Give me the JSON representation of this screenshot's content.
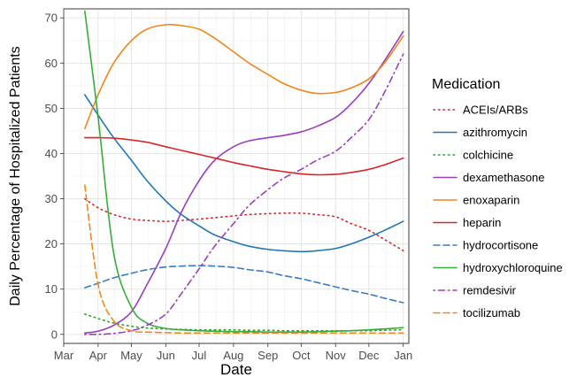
{
  "chart_data": {
    "type": "line",
    "title": "",
    "xlabel": "Date",
    "ylabel": "Daily Percentage of Hospitalized Patients",
    "xlim": [
      "2020-03-01",
      "2021-01-06"
    ],
    "ylim": [
      -2,
      72
    ],
    "x_ticks": [
      {
        "date": "2020-03-01",
        "label": "Mar"
      },
      {
        "date": "2020-04-01",
        "label": "Apr"
      },
      {
        "date": "2020-05-01",
        "label": "May"
      },
      {
        "date": "2020-06-01",
        "label": "Jun"
      },
      {
        "date": "2020-07-01",
        "label": "Jul"
      },
      {
        "date": "2020-08-01",
        "label": "Aug"
      },
      {
        "date": "2020-09-01",
        "label": "Sep"
      },
      {
        "date": "2020-10-01",
        "label": "Oct"
      },
      {
        "date": "2020-11-01",
        "label": "Nov"
      },
      {
        "date": "2020-12-01",
        "label": "Dec"
      },
      {
        "date": "2021-01-01",
        "label": "Jan"
      }
    ],
    "y_ticks": [
      0,
      10,
      20,
      30,
      40,
      50,
      60,
      70
    ],
    "grid": true,
    "legend": {
      "title": "Medication",
      "position": "right"
    },
    "x": [
      "2020-03-20",
      "2020-04-01",
      "2020-04-15",
      "2020-05-01",
      "2020-05-15",
      "2020-06-01",
      "2020-06-15",
      "2020-07-01",
      "2020-07-15",
      "2020-08-01",
      "2020-08-15",
      "2020-09-01",
      "2020-09-15",
      "2020-10-01",
      "2020-10-15",
      "2020-11-01",
      "2020-11-15",
      "2020-12-01",
      "2020-12-15",
      "2021-01-01"
    ],
    "series": [
      {
        "name": "ACEIs/ARBs",
        "color": "#d62728",
        "dash": "dotted",
        "values": [
          30,
          28,
          26.5,
          25.5,
          25.2,
          25,
          25.2,
          25.5,
          25.8,
          26.2,
          26.5,
          26.7,
          26.8,
          26.8,
          26.5,
          26,
          24.5,
          23,
          21,
          18.5
        ]
      },
      {
        "name": "azithromycin",
        "color": "#1f77b4",
        "dash": "solid",
        "values": [
          53,
          48.5,
          43.5,
          38.5,
          34,
          29.5,
          26.5,
          24,
          22,
          20.5,
          19.5,
          18.8,
          18.5,
          18.3,
          18.5,
          19,
          20,
          21.5,
          23,
          25
        ]
      },
      {
        "name": "colchicine",
        "color": "#2ca02c",
        "dash": "dotted",
        "values": [
          4.5,
          3.5,
          2.5,
          1.8,
          1.4,
          1.2,
          1.1,
          1,
          1,
          1,
          0.9,
          0.9,
          0.8,
          0.8,
          0.8,
          0.8,
          0.8,
          0.8,
          0.9,
          1
        ]
      },
      {
        "name": "dexamethasone",
        "color": "#9b3fbf",
        "dash": "solid",
        "values": [
          0.3,
          0.7,
          2,
          5,
          11,
          19,
          27,
          34,
          38.5,
          41.5,
          42.8,
          43.5,
          44,
          44.8,
          46,
          48,
          51,
          55.5,
          60.5,
          67
        ]
      },
      {
        "name": "enoxaparin",
        "color": "#f0871a",
        "dash": "solid",
        "values": [
          45.5,
          53,
          60,
          65,
          67.5,
          68.5,
          68.3,
          67.5,
          65.5,
          62.5,
          60,
          57.5,
          55.5,
          54,
          53.3,
          53.5,
          54.5,
          56.5,
          60,
          66
        ]
      },
      {
        "name": "heparin",
        "color": "#d62728",
        "dash": "solid",
        "values": [
          43.5,
          43.5,
          43.4,
          43,
          42.5,
          41.5,
          40.7,
          39.8,
          39,
          38,
          37.3,
          36.5,
          36,
          35.5,
          35.3,
          35.4,
          35.8,
          36.5,
          37.5,
          39
        ]
      },
      {
        "name": "hydrocortisone",
        "color": "#3b7dc4",
        "dash": "dashed",
        "values": [
          10.3,
          11.3,
          12.5,
          13.5,
          14.3,
          14.9,
          15.1,
          15.2,
          15.1,
          14.8,
          14.3,
          13.8,
          13,
          12.3,
          11.5,
          10.5,
          9.7,
          8.9,
          8,
          7
        ]
      },
      {
        "name": "hydroxychloroquine",
        "color": "#3aab3a",
        "dash": "solid",
        "values": [
          71.5,
          48,
          18,
          6,
          2.5,
          1.3,
          1,
          0.8,
          0.7,
          0.6,
          0.6,
          0.5,
          0.5,
          0.5,
          0.6,
          0.7,
          0.8,
          1,
          1.2,
          1.5
        ]
      },
      {
        "name": "remdesivir",
        "color": "#9b3fbf",
        "dash": "dotdash",
        "values": [
          0,
          0,
          0.2,
          0.8,
          2,
          4.5,
          9,
          14.5,
          19.5,
          24.5,
          28.5,
          32,
          34.5,
          36.5,
          38.5,
          40.5,
          43.5,
          47.5,
          53.5,
          62
        ]
      },
      {
        "name": "tocilizumab",
        "color": "#f0871a",
        "dash": "dashed",
        "values": [
          33,
          11,
          3,
          0.8,
          0.5,
          0.4,
          0.3,
          0.3,
          0.3,
          0.3,
          0.3,
          0.3,
          0.3,
          0.3,
          0.3,
          0.3,
          0.3,
          0.3,
          0.3,
          0.3
        ]
      }
    ]
  }
}
